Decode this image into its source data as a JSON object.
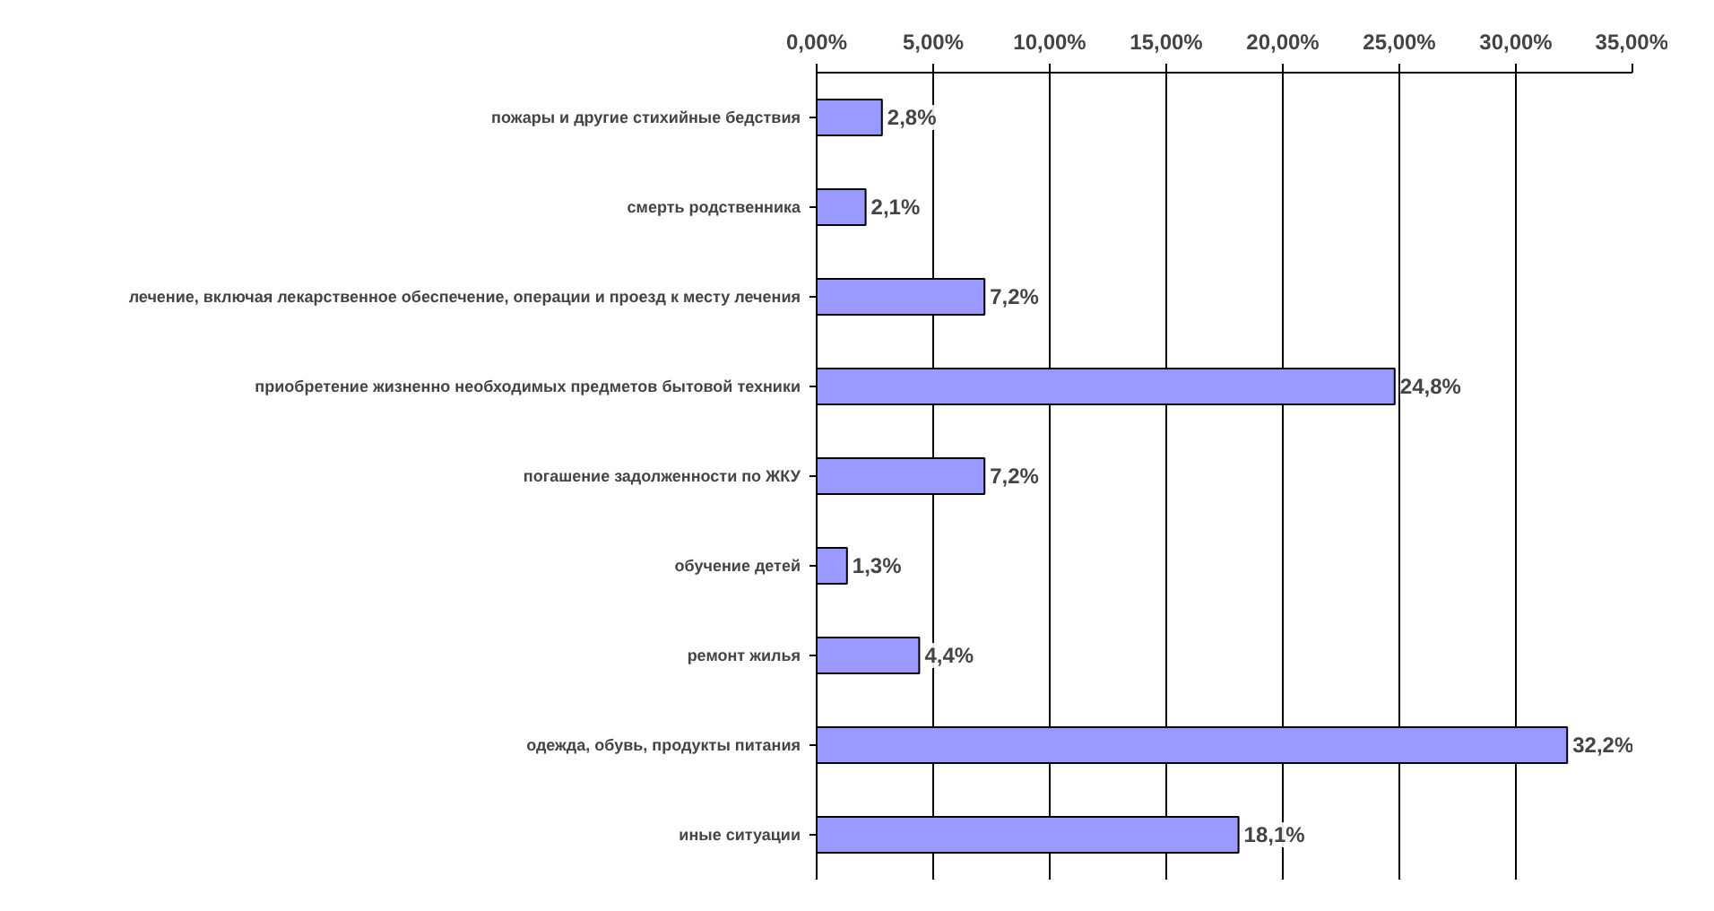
{
  "chart_data": {
    "type": "bar",
    "orientation": "horizontal",
    "categories": [
      "пожары и другие стихийные бедствия",
      "смерть родственника",
      "лечение, включая лекарственное обеспечение, операции и проезд к месту лечения",
      "приобретение жизненно необходимых предметов бытовой техники",
      "погашение задолженности по ЖКУ",
      "обучение детей",
      "ремонт жилья",
      "одежда, обувь, продукты питания",
      "иные ситуации"
    ],
    "values": [
      2.8,
      2.1,
      7.2,
      24.8,
      7.2,
      1.3,
      4.4,
      32.2,
      18.1
    ],
    "value_labels": [
      "2,8%",
      "2,1%",
      "7,2%",
      "24,8%",
      "7,2%",
      "1,3%",
      "4,4%",
      "32,2%",
      "18,1%"
    ],
    "color": "#9999ff",
    "xlim": [
      0,
      35
    ],
    "xticks": [
      {
        "value": 0,
        "label": "0,00%"
      },
      {
        "value": 5,
        "label": "5,00%"
      },
      {
        "value": 10,
        "label": "10,00%"
      },
      {
        "value": 15,
        "label": "15,00%"
      },
      {
        "value": 20,
        "label": "20,00%"
      },
      {
        "value": 25,
        "label": "25,00%"
      },
      {
        "value": 30,
        "label": "30,00%"
      },
      {
        "value": 35,
        "label": "35,00%"
      }
    ],
    "grid": "x"
  }
}
